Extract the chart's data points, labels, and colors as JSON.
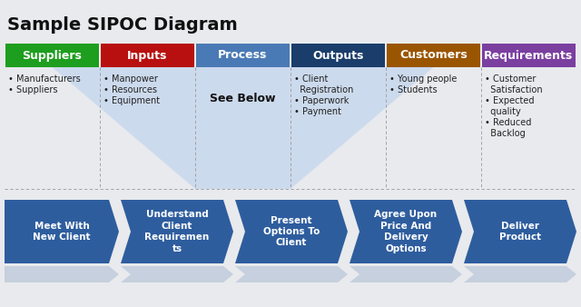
{
  "title": "Sample SIPOC Diagram",
  "title_fontsize": 14,
  "bg_color": "#e8eaed",
  "headers": [
    "Suppliers",
    "Inputs",
    "Process",
    "Outputs",
    "Customers",
    "Requirements"
  ],
  "header_colors": [
    "#1e9e1e",
    "#b81010",
    "#4a7ab5",
    "#1a3d6b",
    "#9a5500",
    "#7b3fa0"
  ],
  "header_text_color": "#ffffff",
  "header_fontsize": 9,
  "col_items": [
    [
      "• Manufacturers",
      "• Suppliers"
    ],
    [
      "• Manpower",
      "• Resources",
      "• Equipment"
    ],
    [
      "See Below"
    ],
    [
      "• Client",
      "  Registration",
      "• Paperwork",
      "• Payment"
    ],
    [
      "• Young people",
      "• Students"
    ],
    [
      "• Customer",
      "  Satisfaction",
      "• Expected",
      "  quality",
      "• Reduced",
      "  Backlog"
    ]
  ],
  "arrow_labels": [
    "Meet With\nNew Client",
    "Understand\nClient\nRequiremen\nts",
    "Present\nOptions To\nClient",
    "Agree Upon\nPrice And\nDelivery\nOptions",
    "Deliver\nProduct"
  ],
  "arrow_color": "#2e5d9e",
  "arrow_text_color": "#ffffff",
  "arrow_fontsize": 7.5,
  "funnel_color": "#c8d8ee",
  "dashed_color": "#999999"
}
